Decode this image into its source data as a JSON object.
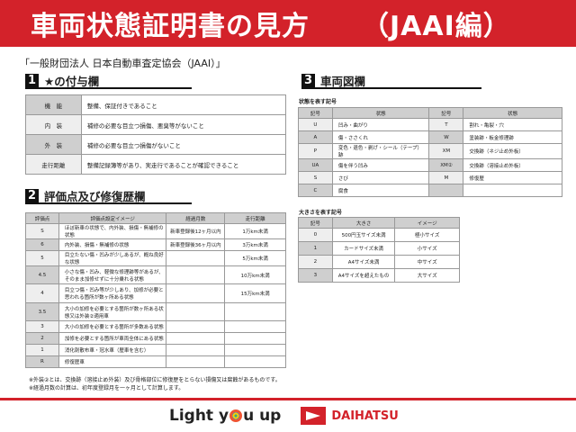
{
  "header": {
    "title": "車両状態証明書の見方",
    "subtitle": "（JAAI編）",
    "org": "「一般財団法人 日本自動車査定協会（JAAI）」"
  },
  "section1": {
    "num": "1",
    "title": "★の付与欄",
    "rows": [
      [
        "機　能",
        "整備、保証付きであること"
      ],
      [
        "内　装",
        "補修の必要な目立つ損傷、悪臭等がないこと"
      ],
      [
        "外　装",
        "補修の必要な目立つ損傷がないこと"
      ],
      [
        "走行距離",
        "整備記録簿等があり、実走行であることが確認できること"
      ]
    ]
  },
  "section2": {
    "num": "2",
    "title": "評価点及び修復歴欄",
    "headers": [
      "評価点",
      "評価点設定イメージ",
      "経過月数",
      "走行距離"
    ],
    "rows": [
      [
        "S",
        "ほぼ新車の状態で、内外装、損傷・無補修の状態",
        "新車登録後12ヶ月以内",
        "1万km未満"
      ],
      [
        "6",
        "内外装、損傷・無補修の状態",
        "新車登録後36ヶ月以内",
        "3万km未満"
      ],
      [
        "5",
        "目立たない傷・凹みが少しあるが、概ね良好な状態",
        "",
        "5万km未満"
      ],
      [
        "4.5",
        "小さな傷・凹み、軽微な修理跡等があるが、そのまま加修せずに十分乗れる状態",
        "",
        "10万km未満"
      ],
      [
        "4",
        "目立つ傷・凹み等が少しあり、加修が必要と思われる箇所が数ヶ所ある状態",
        "",
        "15万km未満"
      ],
      [
        "3.5",
        "大小の加修を必要とする箇所が数ヶ所ある状態又は外装②適用車",
        "",
        ""
      ],
      [
        "3",
        "大小の加修を必要とする箇所が多数ある状態",
        "",
        ""
      ],
      [
        "2",
        "加修を必要とする箇所が車両全体にある状態",
        "",
        ""
      ],
      [
        "1",
        "消化剤散布車・冠水車（歴車を含む）",
        "",
        ""
      ],
      [
        "R",
        "修復歴車",
        "",
        ""
      ]
    ]
  },
  "notes": [
    "※外装②とは、交換跡（溶接止め外装）及び骨格部位に修復歴をとらない損傷又は腐蝕があるものです。",
    "※経過月数の計算は、初年度登録月を一ヶ月として計算します。"
  ],
  "section3": {
    "num": "3",
    "title": "車両図欄",
    "state_caption": "状態を表す記号",
    "state_headers": [
      "記号",
      "状態",
      "記号",
      "状態"
    ],
    "state_rows": [
      [
        "U",
        "凹み・曲がり",
        "T",
        "割れ・亀裂・穴"
      ],
      [
        "A",
        "傷・ささくれ",
        "W",
        "塗装跡・板金修理跡"
      ],
      [
        "P",
        "変色・退色・剥げ・シール（テープ）跡",
        "XM",
        "交換跡（ネジ止め外板）"
      ],
      [
        "UA",
        "傷を伴う凹み",
        "XM②",
        "交換跡（溶接止め外板）"
      ],
      [
        "S",
        "さび",
        "M",
        "修復歴"
      ],
      [
        "C",
        "腐食",
        "",
        ""
      ]
    ],
    "size_caption": "大きさを表す記号",
    "size_headers": [
      "記号",
      "大きさ",
      "イメージ"
    ],
    "size_rows": [
      [
        "0",
        "500円玉サイズ未満",
        "極小サイズ"
      ],
      [
        "1",
        "カードサイズ未満",
        "小サイズ"
      ],
      [
        "2",
        "A4サイズ未満",
        "中サイズ"
      ],
      [
        "3",
        "A4サイズを超えたもの",
        "大サイズ"
      ]
    ]
  },
  "footer": {
    "slogan_a": "Light y",
    "slogan_b": "u up",
    "brand": "DAIHATSU"
  },
  "colors": {
    "brand_red": "#d3222a"
  }
}
